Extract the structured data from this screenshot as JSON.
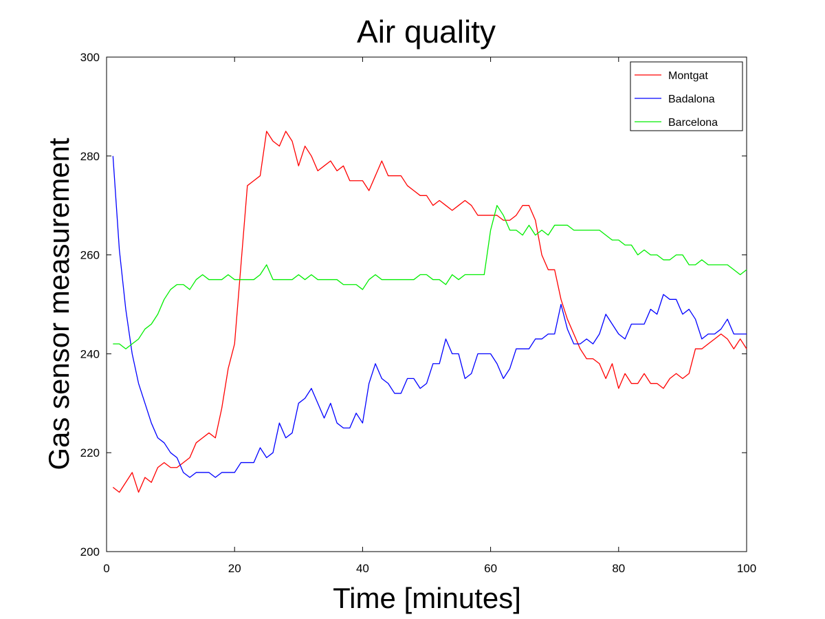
{
  "chart_data": {
    "type": "line",
    "title": "Air quality",
    "xlabel": "Time [minutes]",
    "ylabel": "Gas sensor measurement",
    "xlim": [
      0,
      100
    ],
    "ylim": [
      200,
      300
    ],
    "xticks": [
      0,
      20,
      40,
      60,
      80,
      100
    ],
    "yticks": [
      200,
      220,
      240,
      260,
      280,
      300
    ],
    "grid": false,
    "legend_position": "top-right",
    "x": [
      1,
      2,
      3,
      4,
      5,
      6,
      7,
      8,
      9,
      10,
      11,
      12,
      13,
      14,
      15,
      16,
      17,
      18,
      19,
      20,
      21,
      22,
      23,
      24,
      25,
      26,
      27,
      28,
      29,
      30,
      31,
      32,
      33,
      34,
      35,
      36,
      37,
      38,
      39,
      40,
      41,
      42,
      43,
      44,
      45,
      46,
      47,
      48,
      49,
      50,
      51,
      52,
      53,
      54,
      55,
      56,
      57,
      58,
      59,
      60,
      61,
      62,
      63,
      64,
      65,
      66,
      67,
      68,
      69,
      70,
      71,
      72,
      73,
      74,
      75,
      76,
      77,
      78,
      79,
      80,
      81,
      82,
      83,
      84,
      85,
      86,
      87,
      88,
      89,
      90,
      91,
      92,
      93,
      94,
      95,
      96,
      97,
      98,
      99,
      100
    ],
    "series": [
      {
        "name": "Montgat",
        "color": "#ff0000",
        "values": [
          213,
          212,
          214,
          216,
          212,
          215,
          214,
          217,
          218,
          217,
          217,
          218,
          219,
          222,
          223,
          224,
          223,
          229,
          237,
          242,
          258,
          274,
          275,
          276,
          285,
          283,
          282,
          285,
          283,
          278,
          282,
          280,
          277,
          278,
          279,
          277,
          278,
          275,
          275,
          275,
          273,
          276,
          279,
          276,
          276,
          276,
          274,
          273,
          272,
          272,
          270,
          271,
          270,
          269,
          270,
          271,
          270,
          268,
          268,
          268,
          268,
          267,
          267,
          268,
          270,
          270,
          267,
          260,
          257,
          257,
          251,
          247,
          244,
          241,
          239,
          239,
          238,
          235,
          238,
          233,
          236,
          234,
          234,
          236,
          234,
          234,
          233,
          235,
          236,
          235,
          236,
          241,
          241,
          242,
          243,
          244,
          243,
          241,
          243,
          241
        ]
      },
      {
        "name": "Badalona",
        "color": "#0000ff",
        "values": [
          280,
          261,
          249,
          240,
          234,
          230,
          226,
          223,
          222,
          220,
          219,
          216,
          215,
          216,
          216,
          216,
          215,
          216,
          216,
          216,
          218,
          218,
          218,
          221,
          219,
          220,
          226,
          223,
          224,
          230,
          231,
          233,
          230,
          227,
          230,
          226,
          225,
          225,
          228,
          226,
          234,
          238,
          235,
          234,
          232,
          232,
          235,
          235,
          233,
          234,
          238,
          238,
          243,
          240,
          240,
          235,
          236,
          240,
          240,
          240,
          238,
          235,
          237,
          241,
          241,
          241,
          243,
          243,
          244,
          244,
          250,
          245,
          242,
          242,
          243,
          242,
          244,
          248,
          246,
          244,
          243,
          246,
          246,
          246,
          249,
          248,
          252,
          251,
          251,
          248,
          249,
          247,
          243,
          244,
          244,
          245,
          247,
          244,
          244,
          244
        ]
      },
      {
        "name": "Barcelona",
        "color": "#00ee00",
        "values": [
          242,
          242,
          241,
          242,
          243,
          245,
          246,
          248,
          251,
          253,
          254,
          254,
          253,
          255,
          256,
          255,
          255,
          255,
          256,
          255,
          255,
          255,
          255,
          256,
          258,
          255,
          255,
          255,
          255,
          256,
          255,
          256,
          255,
          255,
          255,
          255,
          254,
          254,
          254,
          253,
          255,
          256,
          255,
          255,
          255,
          255,
          255,
          255,
          256,
          256,
          255,
          255,
          254,
          256,
          255,
          256,
          256,
          256,
          256,
          265,
          270,
          268,
          265,
          265,
          264,
          266,
          264,
          265,
          264,
          266,
          266,
          266,
          265,
          265,
          265,
          265,
          265,
          264,
          263,
          263,
          262,
          262,
          260,
          261,
          260,
          260,
          259,
          259,
          260,
          260,
          258,
          258,
          259,
          258,
          258,
          258,
          258,
          257,
          256,
          257
        ]
      }
    ]
  }
}
